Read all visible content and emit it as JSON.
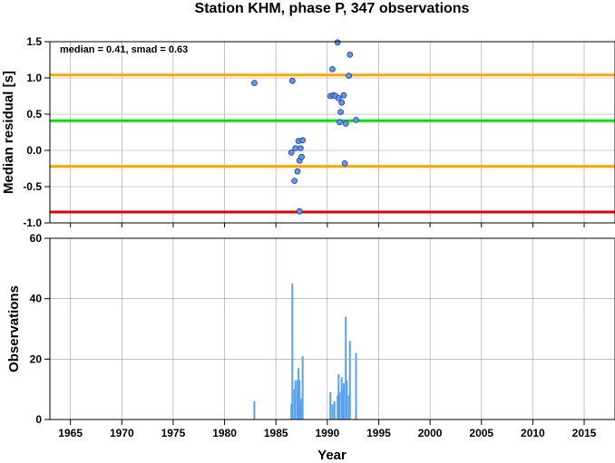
{
  "chart_data": [
    {
      "type": "scatter",
      "title": "Station KHM, phase P, 347 observations",
      "xlabel": "",
      "ylabel": "Median residual [s]",
      "annotation": "median = 0.41, smad = 0.63",
      "xlim": [
        1963,
        2018
      ],
      "ylim": [
        -1.0,
        1.5
      ],
      "yticks": [
        -1.0,
        -0.5,
        0.0,
        0.5,
        1.0,
        1.5
      ],
      "ytick_labels": [
        "-1.0",
        "-0.5",
        "0.0",
        "0.5",
        "1.0",
        "1.5"
      ],
      "grid": true,
      "hlines": [
        {
          "y": 1.04,
          "color": "#ffa500"
        },
        {
          "y": 0.41,
          "color": "#00e600"
        },
        {
          "y": -0.22,
          "color": "#ffa500"
        },
        {
          "y": -0.85,
          "color": "#e00000"
        }
      ],
      "point_color": "#6495ed",
      "points": [
        {
          "x": 1982.9,
          "y": 0.93
        },
        {
          "x": 1986.5,
          "y": -0.03
        },
        {
          "x": 1986.6,
          "y": 0.96
        },
        {
          "x": 1986.8,
          "y": -0.42
        },
        {
          "x": 1986.9,
          "y": 0.03
        },
        {
          "x": 1987.1,
          "y": -0.29
        },
        {
          "x": 1987.2,
          "y": 0.13
        },
        {
          "x": 1987.3,
          "y": -0.14
        },
        {
          "x": 1987.3,
          "y": -0.84
        },
        {
          "x": 1987.4,
          "y": 0.03
        },
        {
          "x": 1987.5,
          "y": -0.09
        },
        {
          "x": 1987.6,
          "y": 0.14
        },
        {
          "x": 1990.3,
          "y": 0.75
        },
        {
          "x": 1990.5,
          "y": 1.12
        },
        {
          "x": 1990.6,
          "y": 0.76
        },
        {
          "x": 1990.8,
          "y": 0.75
        },
        {
          "x": 1991.0,
          "y": 1.49
        },
        {
          "x": 1991.1,
          "y": 0.72
        },
        {
          "x": 1991.2,
          "y": 0.39
        },
        {
          "x": 1991.3,
          "y": 0.53
        },
        {
          "x": 1991.4,
          "y": 0.66
        },
        {
          "x": 1991.6,
          "y": 0.76
        },
        {
          "x": 1991.7,
          "y": -0.18
        },
        {
          "x": 1991.8,
          "y": 0.37
        },
        {
          "x": 1992.1,
          "y": 1.03
        },
        {
          "x": 1992.2,
          "y": 1.32
        },
        {
          "x": 1992.8,
          "y": 0.42
        }
      ]
    },
    {
      "type": "bar",
      "xlabel": "Year",
      "ylabel": "Observations",
      "xlim": [
        1963,
        2018
      ],
      "ylim": [
        0,
        60
      ],
      "xticks": [
        1965,
        1970,
        1975,
        1980,
        1985,
        1990,
        1995,
        2000,
        2005,
        2010,
        2015
      ],
      "xtick_labels": [
        "1965",
        "1970",
        "1975",
        "1980",
        "1985",
        "1990",
        "1995",
        "2000",
        "2005",
        "2010",
        "2015"
      ],
      "yticks": [
        0,
        20,
        40,
        60
      ],
      "ytick_labels": [
        "0",
        "20",
        "40",
        "60"
      ],
      "grid": true,
      "bar_color": "#5aa0ea",
      "bars": [
        {
          "x": 1982.9,
          "value": 6
        },
        {
          "x": 1986.5,
          "value": 5
        },
        {
          "x": 1986.6,
          "value": 45
        },
        {
          "x": 1986.8,
          "value": 10
        },
        {
          "x": 1986.9,
          "value": 13
        },
        {
          "x": 1987.1,
          "value": 13
        },
        {
          "x": 1987.2,
          "value": 17
        },
        {
          "x": 1987.3,
          "value": 13
        },
        {
          "x": 1987.4,
          "value": 6
        },
        {
          "x": 1987.5,
          "value": 7
        },
        {
          "x": 1987.6,
          "value": 21
        },
        {
          "x": 1990.3,
          "value": 9
        },
        {
          "x": 1990.5,
          "value": 5
        },
        {
          "x": 1990.7,
          "value": 6
        },
        {
          "x": 1991.0,
          "value": 8
        },
        {
          "x": 1991.1,
          "value": 15
        },
        {
          "x": 1991.2,
          "value": 9
        },
        {
          "x": 1991.4,
          "value": 14
        },
        {
          "x": 1991.5,
          "value": 10
        },
        {
          "x": 1991.6,
          "value": 12
        },
        {
          "x": 1991.8,
          "value": 34
        },
        {
          "x": 1991.9,
          "value": 13
        },
        {
          "x": 1992.1,
          "value": 8
        },
        {
          "x": 1992.2,
          "value": 26
        },
        {
          "x": 1992.8,
          "value": 22
        }
      ]
    }
  ]
}
